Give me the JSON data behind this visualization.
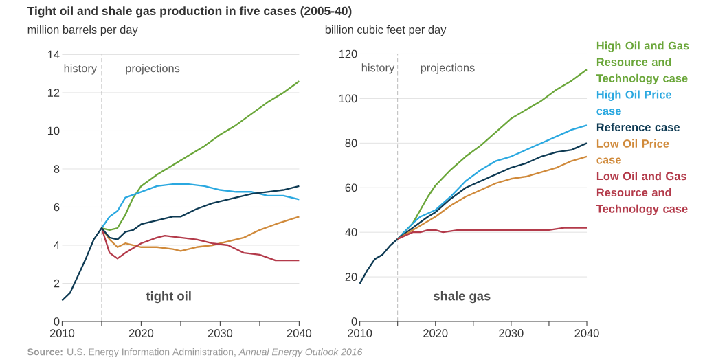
{
  "chart_data": [
    {
      "type": "line",
      "title": "Tight oil and shale gas production in five cases (2005-40)",
      "ylabel": "million barrels per day",
      "annotations": [
        "history",
        "projections",
        "tight oil",
        "**Source:** U.S. Energy Information Administration, *Annual Energy Outlook 2016*"
      ],
      "xlim": [
        2010,
        2040
      ],
      "xticks": [
        2010,
        {
          "value": 2015,
          "label": null
        },
        2020,
        {
          "value": 2025,
          "label": null
        },
        2030,
        {
          "value": 2035,
          "label": null
        },
        2040
      ],
      "ylim": [
        0,
        14
      ],
      "yticks": [
        0,
        2,
        4,
        6,
        8,
        10,
        12,
        14
      ],
      "grid": "y",
      "legend": false,
      "marker": "none",
      "line_style": "solid",
      "ref_lines": [
        {
          "axis": "x",
          "value": 2015,
          "color": "#b0b0b0",
          "line_style": "dashed"
        }
      ],
      "series": [
        {
          "color": "#6aa639",
          "x": [
            2015,
            2016,
            2017,
            2018,
            2019,
            2020,
            2022,
            2024,
            2026,
            2028,
            2030,
            2032,
            2034,
            2036,
            2038,
            2040
          ],
          "values": [
            4.9,
            4.8,
            4.9,
            5.6,
            6.5,
            7.1,
            7.7,
            8.2,
            8.7,
            9.2,
            9.8,
            10.3,
            10.9,
            11.5,
            12,
            12.6
          ]
        },
        {
          "color": "#2aa8e0",
          "x": [
            2015,
            2016,
            2017,
            2018,
            2020,
            2022,
            2024,
            2026,
            2028,
            2030,
            2032,
            2034,
            2036,
            2038,
            2040
          ],
          "values": [
            4.9,
            5.5,
            5.8,
            6.5,
            6.8,
            7.1,
            7.2,
            7.2,
            7.1,
            6.9,
            6.8,
            6.8,
            6.6,
            6.6,
            6.4
          ]
        },
        {
          "color": "#d08a3b",
          "x": [
            2015,
            2016,
            2017,
            2018,
            2020,
            2022,
            2024,
            2025,
            2027,
            2029,
            2031,
            2033,
            2035,
            2037,
            2040
          ],
          "values": [
            4.9,
            4.3,
            3.9,
            4.1,
            3.9,
            3.9,
            3.8,
            3.7,
            3.9,
            4,
            4.2,
            4.4,
            4.8,
            5.1,
            5.5
          ]
        },
        {
          "color": "#b33a4a",
          "x": [
            2015,
            2016,
            2017,
            2018,
            2020,
            2022,
            2023,
            2025,
            2027,
            2029,
            2031,
            2033,
            2035,
            2037,
            2040
          ],
          "values": [
            4.9,
            3.6,
            3.3,
            3.6,
            4.1,
            4.4,
            4.5,
            4.4,
            4.3,
            4.1,
            4,
            3.6,
            3.5,
            3.2,
            3.2
          ]
        },
        {
          "color": "#0e3a53",
          "x": [
            2010,
            2011,
            2012,
            2013,
            2014,
            2015,
            2016,
            2017,
            2018,
            2019,
            2020,
            2022,
            2024,
            2025,
            2027,
            2029,
            2030,
            2032,
            2034,
            2036,
            2038,
            2040
          ],
          "values": [
            1.1,
            1.5,
            2.4,
            3.3,
            4.3,
            4.9,
            4.4,
            4.3,
            4.7,
            4.8,
            5.1,
            5.3,
            5.5,
            5.5,
            5.9,
            6.2,
            6.3,
            6.5,
            6.7,
            6.8,
            6.9,
            7.1
          ]
        }
      ]
    },
    {
      "type": "line",
      "ylabel": "billion cubic feet per day",
      "annotations": [
        "history",
        "projections",
        "shale gas"
      ],
      "xlim": [
        2010,
        2040
      ],
      "xticks": [
        2010,
        {
          "value": 2015,
          "label": null
        },
        2020,
        {
          "value": 2025,
          "label": null
        },
        2030,
        {
          "value": 2035,
          "label": null
        },
        2040
      ],
      "ylim": [
        0,
        120
      ],
      "yticks": [
        0,
        20,
        40,
        60,
        80,
        100,
        120
      ],
      "grid": "y",
      "legend": "right",
      "marker": "none",
      "line_style": "solid",
      "ref_lines": [
        {
          "axis": "x",
          "value": 2015,
          "color": "#b0b0b0",
          "line_style": "dashed"
        }
      ],
      "series": [
        {
          "name": "High Oil and Gas Resource and Technology case",
          "color": "#6aa639",
          "x": [
            2015,
            2017,
            2019,
            2020,
            2022,
            2024,
            2026,
            2028,
            2030,
            2032,
            2034,
            2036,
            2038,
            2040
          ],
          "values": [
            37,
            44,
            56,
            61,
            68,
            74,
            79,
            85,
            91,
            95,
            99,
            104,
            108,
            113
          ]
        },
        {
          "name": "High Oil Price case",
          "color": "#2aa8e0",
          "x": [
            2015,
            2017,
            2018,
            2020,
            2022,
            2024,
            2026,
            2028,
            2030,
            2032,
            2034,
            2036,
            2038,
            2040
          ],
          "values": [
            37,
            44,
            47,
            50,
            56,
            63,
            68,
            72,
            74,
            77,
            80,
            83,
            86,
            88
          ]
        },
        {
          "name": "Reference case",
          "color": "#0e3a53",
          "x": [
            2010,
            2011,
            2012,
            2013,
            2014,
            2015,
            2017,
            2019,
            2020,
            2022,
            2024,
            2026,
            2028,
            2030,
            2032,
            2034,
            2036,
            2038,
            2040
          ],
          "values": [
            17,
            23,
            28,
            30,
            34,
            37,
            42,
            47,
            49,
            55,
            60,
            63,
            66,
            69,
            71,
            74,
            76,
            77,
            80
          ]
        },
        {
          "name": "Low Oil Price case",
          "color": "#d08a3b",
          "x": [
            2015,
            2017,
            2019,
            2020,
            2022,
            2024,
            2026,
            2028,
            2030,
            2032,
            2034,
            2036,
            2038,
            2040
          ],
          "values": [
            37,
            41,
            45,
            47,
            52,
            56,
            59,
            62,
            64,
            65,
            67,
            69,
            72,
            74
          ]
        },
        {
          "name": "Low Oil and Gas Resource and Technology case",
          "color": "#b33a4a",
          "x": [
            2015,
            2017,
            2018,
            2019,
            2020,
            2021,
            2023,
            2025,
            2027,
            2030,
            2035,
            2037,
            2040
          ],
          "values": [
            37,
            40,
            40,
            41,
            41,
            40,
            41,
            41,
            41,
            41,
            41,
            42,
            42
          ]
        }
      ]
    }
  ]
}
